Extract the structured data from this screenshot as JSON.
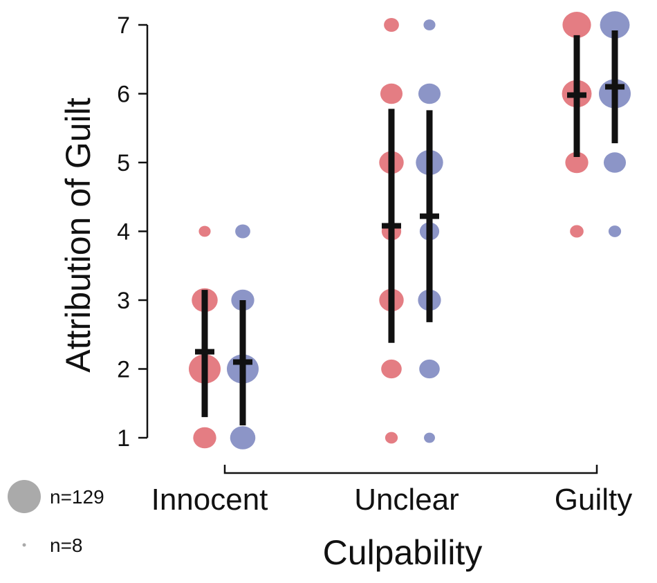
{
  "chart_data": {
    "type": "scatter",
    "title": "",
    "xlabel": "Culpability",
    "ylabel": "Attribution of Guilt",
    "categories": [
      "Innocent",
      "Unclear",
      "Guilty"
    ],
    "yticks": [
      1,
      2,
      3,
      4,
      5,
      6,
      7
    ],
    "ylim": [
      1,
      7
    ],
    "grid": false,
    "legend": {
      "placement": "bottom-left",
      "items": [
        {
          "label": "n=129",
          "n": 129
        },
        {
          "label": "n=8",
          "n": 8
        }
      ]
    },
    "colors": {
      "series_a": "#e06b72",
      "series_b": "#7c86bf",
      "legend_dot": "#aaaaaa",
      "summary": "#111111"
    },
    "series": [
      {
        "color_key": "series_a",
        "groups": [
          {
            "category": "Innocent",
            "mean": 2.25,
            "err_low": 1.3,
            "err_high": 3.15,
            "points": [
              {
                "y": 4,
                "n": 10
              },
              {
                "y": 3,
                "n": 80
              },
              {
                "y": 2,
                "n": 129
              },
              {
                "y": 1,
                "n": 60
              }
            ]
          },
          {
            "category": "Unclear",
            "mean": 4.08,
            "err_low": 2.38,
            "err_high": 5.78,
            "points": [
              {
                "y": 7,
                "n": 20
              },
              {
                "y": 6,
                "n": 55
              },
              {
                "y": 5,
                "n": 70
              },
              {
                "y": 4,
                "n": 40
              },
              {
                "y": 3,
                "n": 70
              },
              {
                "y": 2,
                "n": 45
              },
              {
                "y": 1,
                "n": 12
              }
            ]
          },
          {
            "category": "Guilty",
            "mean": 5.98,
            "err_low": 5.08,
            "err_high": 6.85,
            "points": [
              {
                "y": 7,
                "n": 100
              },
              {
                "y": 6,
                "n": 110
              },
              {
                "y": 5,
                "n": 60
              },
              {
                "y": 4,
                "n": 15
              }
            ]
          }
        ]
      },
      {
        "color_key": "series_b",
        "groups": [
          {
            "category": "Innocent",
            "mean": 2.1,
            "err_low": 1.18,
            "err_high": 3.0,
            "points": [
              {
                "y": 4,
                "n": 20
              },
              {
                "y": 3,
                "n": 60
              },
              {
                "y": 2,
                "n": 129
              },
              {
                "y": 1,
                "n": 75
              }
            ]
          },
          {
            "category": "Unclear",
            "mean": 4.22,
            "err_low": 2.68,
            "err_high": 5.76,
            "points": [
              {
                "y": 7,
                "n": 10
              },
              {
                "y": 6,
                "n": 55
              },
              {
                "y": 5,
                "n": 90
              },
              {
                "y": 4,
                "n": 40
              },
              {
                "y": 3,
                "n": 60
              },
              {
                "y": 2,
                "n": 45
              },
              {
                "y": 1,
                "n": 8
              }
            ]
          },
          {
            "category": "Guilty",
            "mean": 6.1,
            "err_low": 5.28,
            "err_high": 6.92,
            "points": [
              {
                "y": 7,
                "n": 110
              },
              {
                "y": 6,
                "n": 129
              },
              {
                "y": 5,
                "n": 55
              },
              {
                "y": 4,
                "n": 12
              }
            ]
          }
        ]
      }
    ]
  }
}
